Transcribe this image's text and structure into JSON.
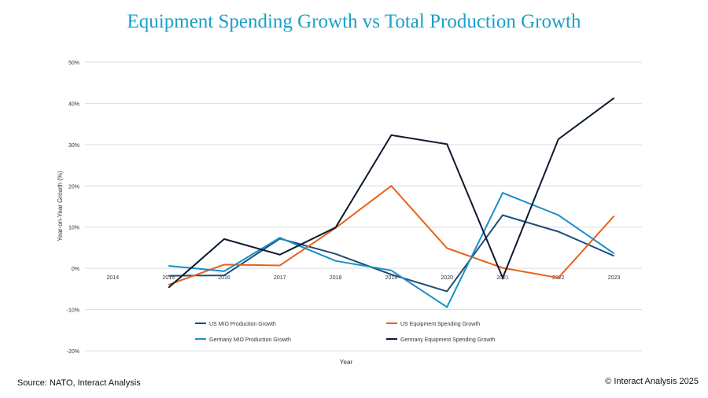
{
  "title": "Equipment Spending Growth vs Total Production Growth",
  "source": "Source: NATO, Interact Analysis",
  "copyright": "© Interact Analysis 2025",
  "chart_data": {
    "type": "line",
    "xlabel": "Year",
    "ylabel": "Year-on-Year Growth (%)",
    "categories": [
      "2014",
      "2015",
      "2016",
      "2017",
      "2018",
      "2019",
      "2020",
      "2021",
      "2022",
      "2023"
    ],
    "yticks": [
      "50%",
      "40%",
      "30%",
      "20%",
      "10%",
      "0%",
      "-10%",
      "-20%"
    ],
    "ylim": [
      -20,
      50
    ],
    "grid": true,
    "legend_position": "bottom",
    "series": [
      {
        "name": "US MIO Production Growth",
        "color": "#1f4e79",
        "values": [
          null,
          -1.8,
          -1.7,
          7.2,
          3.5,
          -1.5,
          -5.6,
          12.9,
          8.9,
          3.0
        ]
      },
      {
        "name": "US Equipment Spending Growth",
        "color": "#e8611a",
        "values": [
          null,
          -4.0,
          0.9,
          0.7,
          9.8,
          20.0,
          4.9,
          0.1,
          -2.3,
          12.7
        ]
      },
      {
        "name": "Germany MIO Production Growth",
        "color": "#1a8fc4",
        "values": [
          null,
          0.6,
          -0.7,
          7.4,
          1.8,
          -0.5,
          -9.4,
          18.3,
          12.9,
          3.6
        ]
      },
      {
        "name": "Germany Equipment Spending Growth",
        "color": "#0d1b2e",
        "values": [
          null,
          -4.7,
          7.1,
          3.3,
          9.9,
          32.3,
          30.1,
          -2.3,
          31.3,
          41.3
        ]
      }
    ]
  }
}
